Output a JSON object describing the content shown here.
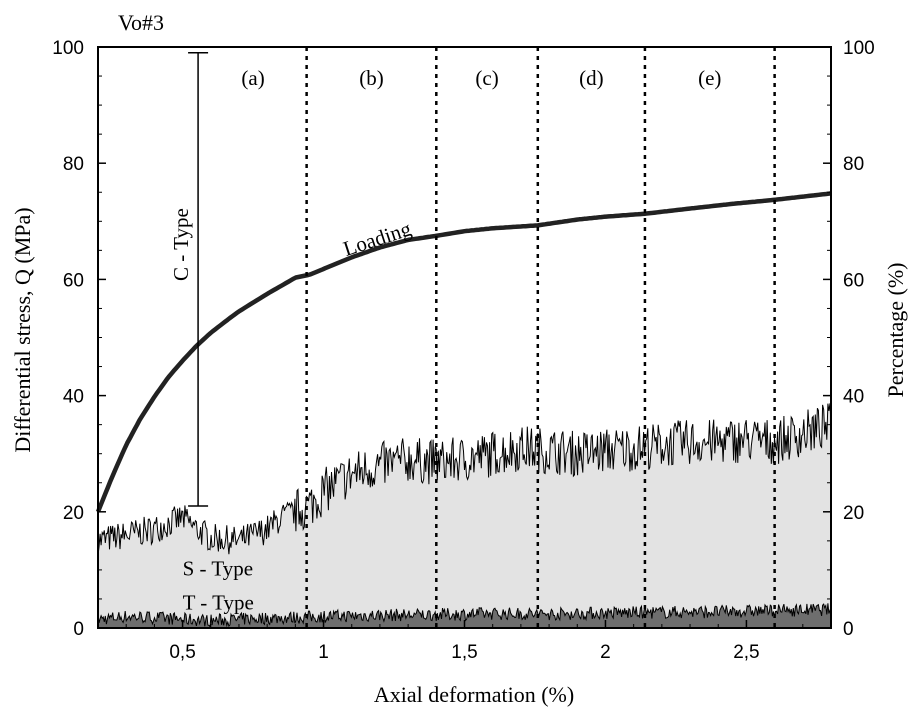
{
  "chart_data": {
    "type": "line",
    "title": "Vo#3",
    "xlabel": "Axial deformation (%)",
    "ylabel_left": "Differential stress, Q (MPa)",
    "ylabel_right": "Percentage (%)",
    "xlim": [
      0.2,
      2.8
    ],
    "ylim_left": [
      0,
      100
    ],
    "ylim_right": [
      0,
      100
    ],
    "x_ticks": [
      0.5,
      1,
      1.5,
      2,
      2.5
    ],
    "x_tick_labels": [
      "0,5",
      "1",
      "1,5",
      "2",
      "2,5"
    ],
    "y_ticks": [
      0,
      20,
      40,
      60,
      80,
      100
    ],
    "y_tick_labels": [
      "0",
      "20",
      "40",
      "60",
      "80",
      "100"
    ],
    "grid": false,
    "series": [
      {
        "name": "Loading",
        "x": [
          0.2,
          0.25,
          0.3,
          0.35,
          0.4,
          0.45,
          0.5,
          0.55,
          0.6,
          0.65,
          0.7,
          0.75,
          0.8,
          0.85,
          0.9,
          0.95,
          1.0,
          1.1,
          1.2,
          1.3,
          1.4,
          1.5,
          1.6,
          1.76,
          1.9,
          2.0,
          2.14,
          2.3,
          2.45,
          2.6,
          2.8
        ],
        "values": [
          20,
          26,
          31.5,
          36,
          39.8,
          43.2,
          46,
          48.6,
          50.8,
          52.7,
          54.5,
          56,
          57.5,
          58.9,
          60.3,
          60.8,
          61.8,
          63.8,
          65.5,
          66.8,
          67.5,
          68.3,
          68.8,
          69.3,
          70.3,
          70.8,
          71.3,
          72.2,
          73,
          73.7,
          74.8
        ]
      },
      {
        "name": "S - Type",
        "x": [
          0.2,
          0.3,
          0.4,
          0.45,
          0.5,
          0.55,
          0.6,
          0.7,
          0.8,
          0.85,
          0.9,
          0.95,
          1.0,
          1.1,
          1.2,
          1.3,
          1.4,
          1.5,
          1.6,
          1.7,
          1.8,
          1.9,
          2.0,
          2.1,
          2.2,
          2.3,
          2.4,
          2.5,
          2.6,
          2.7,
          2.8
        ],
        "values": [
          15,
          16,
          17,
          18,
          19,
          17,
          15.5,
          15,
          17,
          19,
          20,
          21,
          23.5,
          26.5,
          28,
          29,
          28.5,
          29,
          30,
          31,
          30.5,
          30,
          30.5,
          31,
          31.5,
          32,
          32,
          32.5,
          32,
          33.5,
          35
        ]
      },
      {
        "name": "T - Type",
        "x": [
          0.2,
          0.3,
          0.4,
          0.5,
          0.6,
          0.7,
          0.8,
          0.9,
          1.0,
          1.2,
          1.4,
          1.6,
          1.8,
          2.0,
          2.2,
          2.4,
          2.6,
          2.8
        ],
        "values": [
          1.5,
          2,
          1.8,
          1.5,
          1.3,
          1.5,
          1.7,
          1.8,
          2,
          2.2,
          2.3,
          2.5,
          2.4,
          2.6,
          2.7,
          2.8,
          3,
          3.2
        ]
      }
    ],
    "c_type": {
      "label": "C - Type",
      "x": 0.555,
      "y_low": 21,
      "y_high": 99
    },
    "stage_boundaries": [
      0.94,
      1.4,
      1.76,
      2.14,
      2.6
    ],
    "stage_labels": [
      {
        "text": "(a)",
        "x": 0.75
      },
      {
        "text": "(b)",
        "x": 1.17
      },
      {
        "text": "(c)",
        "x": 1.58
      },
      {
        "text": "(d)",
        "x": 1.95
      },
      {
        "text": "(e)",
        "x": 2.37
      }
    ],
    "annotations": [
      {
        "text": "Loading",
        "x": 1.08,
        "y": 64,
        "rotate": -18
      },
      {
        "text": "S - Type",
        "x": 0.5,
        "y": 9
      },
      {
        "text": "T - Type",
        "x": 0.5,
        "y": 3.2
      }
    ],
    "colors": {
      "loading": "#222222",
      "s_fill": "#e3e3e3",
      "t_fill": "#6e6e6e",
      "axis": "#000000"
    }
  }
}
